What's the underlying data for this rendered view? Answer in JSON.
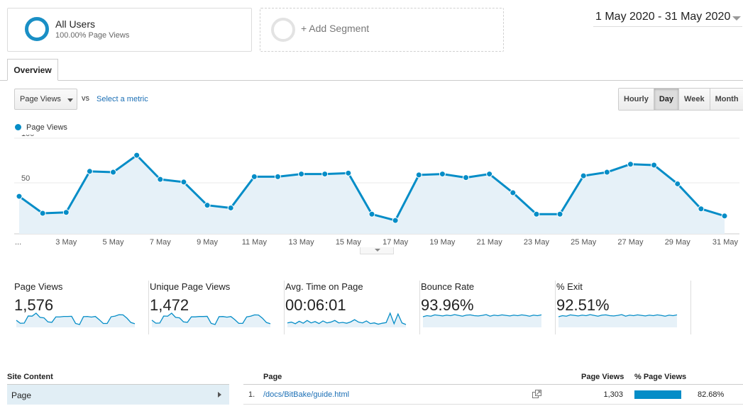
{
  "segment": {
    "name": "All Users",
    "subtitle": "100.00% Page Views"
  },
  "add_segment_label": "+ Add Segment",
  "date_range": "1 May 2020 - 31 May 2020",
  "tab_label": "Overview",
  "metric_select": "Page Views",
  "vs_label": "vs",
  "select_metric_label": "Select a metric",
  "periods": [
    {
      "label": "Hourly",
      "active": false
    },
    {
      "label": "Day",
      "active": true
    },
    {
      "label": "Week",
      "active": false
    },
    {
      "label": "Month",
      "active": false
    }
  ],
  "colors": {
    "accent": "#058dc7",
    "fill": "#e6f1f8",
    "segment_ring": "#1a8fc5",
    "link": "#1b6fb5"
  },
  "chart_data": {
    "type": "area",
    "series": [
      {
        "name": "Page Views",
        "values": [
          42,
          23,
          24,
          70,
          69,
          88,
          61,
          58,
          32,
          29,
          64,
          64,
          67,
          67,
          68,
          22,
          15,
          66,
          67,
          63,
          67,
          46,
          22,
          22,
          65,
          69,
          78,
          77,
          56,
          28,
          20
        ]
      }
    ],
    "x": [
      "1 May",
      "2 May",
      "3 May",
      "4 May",
      "5 May",
      "6 May",
      "7 May",
      "8 May",
      "9 May",
      "10 May",
      "11 May",
      "12 May",
      "13 May",
      "14 May",
      "15 May",
      "16 May",
      "17 May",
      "18 May",
      "19 May",
      "20 May",
      "21 May",
      "22 May",
      "23 May",
      "24 May",
      "25 May",
      "26 May",
      "27 May",
      "28 May",
      "29 May",
      "30 May",
      "31 May"
    ],
    "x_tick_labels": [
      "...",
      "3 May",
      "5 May",
      "7 May",
      "9 May",
      "11 May",
      "13 May",
      "15 May",
      "17 May",
      "19 May",
      "21 May",
      "23 May",
      "25 May",
      "27 May",
      "29 May",
      "31 May"
    ],
    "y_ticks": [
      "100",
      "50"
    ],
    "ylim": [
      0,
      100
    ],
    "legend": "top-left",
    "grid": true
  },
  "scorecards": [
    {
      "title": "Page Views",
      "value": "1,576",
      "spark": [
        42,
        23,
        24,
        70,
        69,
        88,
        61,
        58,
        32,
        29,
        64,
        64,
        67,
        67,
        68,
        22,
        15,
        66,
        67,
        63,
        67,
        46,
        22,
        22,
        65,
        69,
        78,
        77,
        56,
        28,
        20
      ]
    },
    {
      "title": "Unique Page Views",
      "value": "1,472",
      "spark": [
        40,
        22,
        23,
        65,
        64,
        82,
        57,
        54,
        30,
        27,
        60,
        60,
        62,
        62,
        63,
        21,
        14,
        61,
        62,
        58,
        62,
        43,
        21,
        21,
        60,
        64,
        72,
        71,
        52,
        26,
        19
      ]
    },
    {
      "title": "Avg. Time on Page",
      "value": "00:06:01",
      "spark": [
        30,
        35,
        25,
        40,
        28,
        45,
        30,
        38,
        26,
        42,
        30,
        35,
        45,
        30,
        33,
        28,
        36,
        50,
        35,
        30,
        42,
        26,
        30,
        22,
        28,
        32,
        90,
        25,
        85,
        30,
        20
      ]
    },
    {
      "title": "Bounce Rate",
      "value": "93.96%",
      "spark": [
        88,
        92,
        90,
        95,
        93,
        91,
        94,
        92,
        96,
        93,
        90,
        94,
        95,
        92,
        91,
        93,
        96,
        90,
        94,
        92,
        95,
        93,
        91,
        94,
        92,
        95,
        93,
        90,
        94,
        92,
        95
      ]
    },
    {
      "title": "% Exit",
      "value": "92.51%",
      "spark": [
        88,
        92,
        90,
        95,
        93,
        91,
        94,
        92,
        96,
        93,
        90,
        94,
        95,
        92,
        91,
        93,
        96,
        90,
        94,
        92,
        95,
        93,
        91,
        94,
        92,
        95,
        93,
        90,
        94,
        92,
        95
      ]
    }
  ],
  "site_content": {
    "header": "Site Content",
    "item": "Page"
  },
  "table": {
    "headers": {
      "page": "Page",
      "page_views": "Page Views",
      "pct_page_views": "% Page Views"
    },
    "rows": [
      {
        "rank": "1.",
        "page": "/docs/BitBake/guide.html",
        "page_views": "1,303",
        "pct": "82.68%",
        "pct_value": 82.68
      }
    ]
  }
}
